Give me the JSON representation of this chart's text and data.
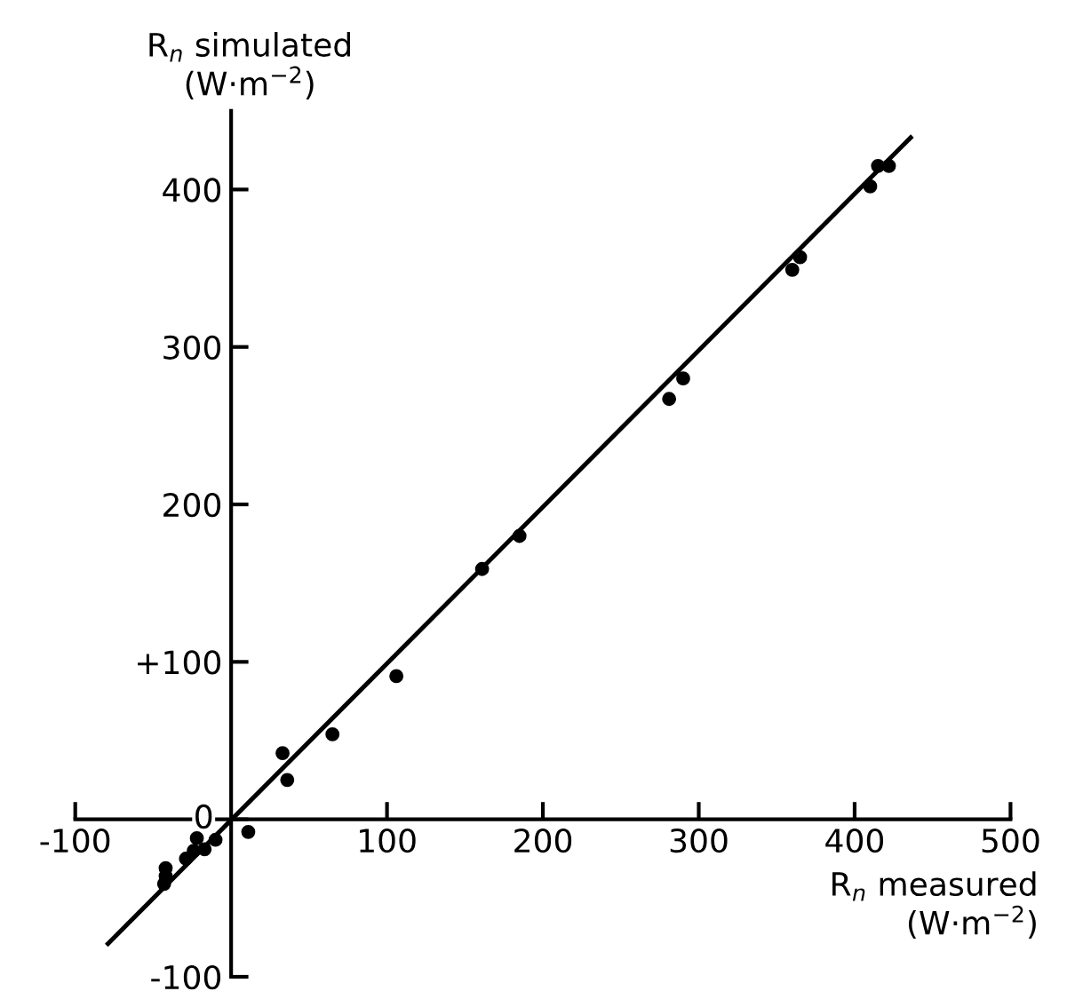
{
  "chart_data": {
    "type": "scatter",
    "xlabel": "R$_{n}$ measured\n(W·m$^{−2}$)",
    "ylabel": "R$_{n}$ simulated\n(W·m$^{−2}$)",
    "xlim": [
      -100,
      500
    ],
    "ylim": [
      -100,
      450
    ],
    "xticks": [
      -100,
      100,
      200,
      300,
      400,
      500
    ],
    "yticks": [
      -100,
      0,
      {
        "value": 100,
        "label": "+100"
      },
      200,
      300,
      400
    ],
    "grid": false,
    "legend": false,
    "marker": "circle",
    "series": [
      {
        "type": "scatter",
        "color": "#000000",
        "x": [
          415,
          422,
          410,
          365,
          360,
          290,
          281,
          185,
          161,
          106,
          65,
          33,
          36,
          11,
          -10,
          -17,
          -24,
          -22,
          -29,
          -42,
          -43,
          -42
        ],
        "values": [
          415,
          415,
          402,
          357,
          349,
          280,
          267,
          180,
          159,
          91,
          54,
          42,
          25,
          -8,
          -13,
          -19,
          -20,
          -12,
          -25,
          -31,
          -41,
          -36
        ]
      },
      {
        "type": "line",
        "color": "#000000",
        "line_style": "solid",
        "marker": "none",
        "x": [
          -79,
          436
        ],
        "values": [
          -79,
          433
        ]
      }
    ]
  }
}
